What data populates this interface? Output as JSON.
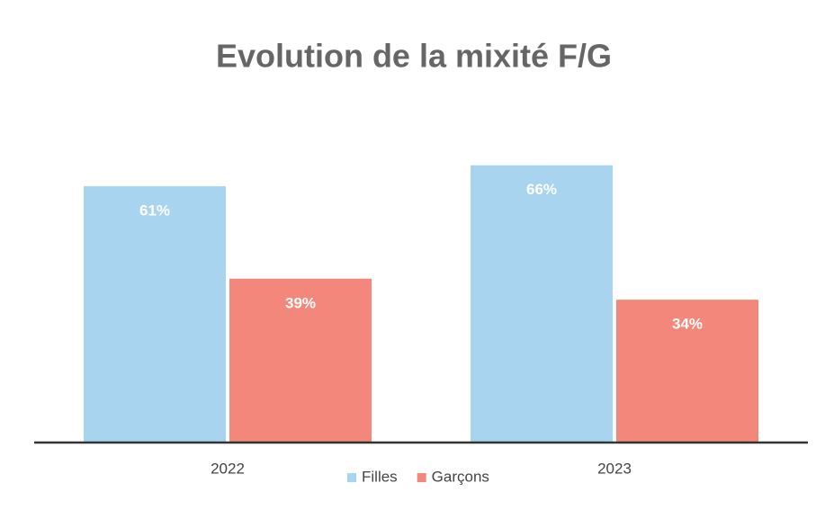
{
  "chart_data": {
    "type": "bar",
    "title": "Evolution de la mixité F/G",
    "categories": [
      "2022",
      "2023"
    ],
    "series": [
      {
        "name": "Filles",
        "color": "#a8d4ef",
        "values": [
          61,
          66
        ],
        "value_labels": [
          "61%",
          "66%"
        ]
      },
      {
        "name": "Garçons",
        "color": "#f4877b",
        "values": [
          39,
          34
        ],
        "value_labels": [
          "39%",
          "34%"
        ]
      }
    ],
    "ylim": [
      0,
      70
    ],
    "grid": false,
    "legend": "bottom"
  }
}
